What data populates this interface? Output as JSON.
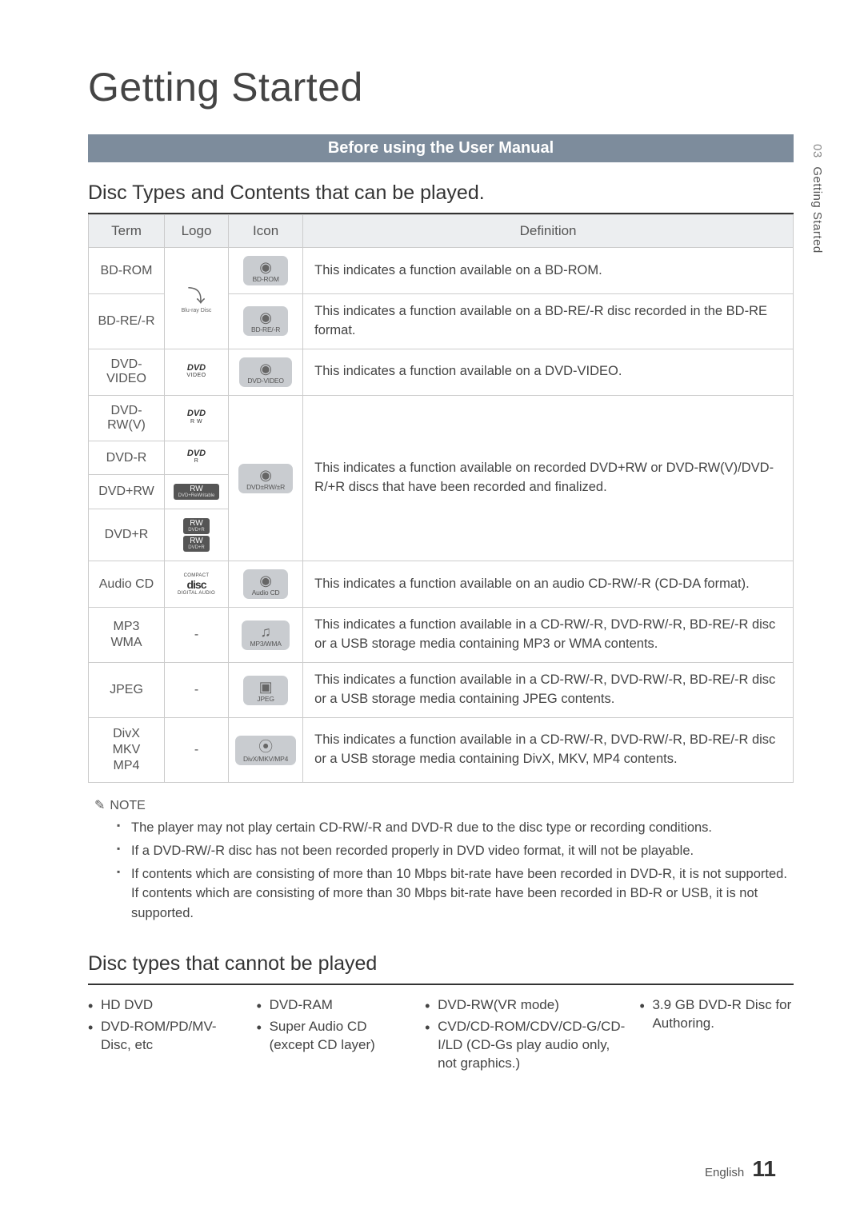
{
  "sideTab": {
    "number": "03",
    "label": "Getting Started"
  },
  "title": "Getting Started",
  "banner": "Before using the User Manual",
  "subtitle1": "Disc Types and Contents that can be played.",
  "tableHeaders": {
    "term": "Term",
    "logo": "Logo",
    "icon": "Icon",
    "definition": "Definition"
  },
  "rows": {
    "bdrom": {
      "term": "BD-ROM",
      "iconLabel": "BD-ROM",
      "def": "This indicates a function available on a BD-ROM."
    },
    "bdre": {
      "term": "BD-RE/-R",
      "iconLabel": "BD-RE/-R",
      "def": "This indicates a function available on a BD-RE/-R disc recorded in the BD-RE format."
    },
    "dvdvid": {
      "term": "DVD-VIDEO",
      "iconLabel": "DVD-VIDEO",
      "def": "This indicates a function available on a DVD-VIDEO."
    },
    "dvdrwv": {
      "term": "DVD-RW(V)"
    },
    "dvdr": {
      "term": "DVD-R"
    },
    "dvdprw": {
      "term": "DVD+RW",
      "iconLabel": "DVD±RW/±R",
      "def": "This indicates a function available on recorded DVD+RW or DVD-RW(V)/DVD-R/+R discs that have been recorded and finalized."
    },
    "dvdpr": {
      "term": "DVD+R"
    },
    "audiocd": {
      "term": "Audio CD",
      "iconLabel": "Audio CD",
      "def": "This indicates a function available on an audio CD-RW/-R (CD-DA format)."
    },
    "mp3": {
      "term": "MP3\nWMA",
      "logoDash": "-",
      "iconLabel": "MP3/WMA",
      "def": "This indicates a function available in a CD-RW/-R, DVD-RW/-R, BD-RE/-R  disc or a USB storage media containing MP3 or WMA contents."
    },
    "jpeg": {
      "term": "JPEG",
      "logoDash": "-",
      "iconLabel": "JPEG",
      "def": "This indicates a function available in a CD-RW/-R, DVD-RW/-R, BD-RE/-R disc or a USB storage media containing JPEG contents."
    },
    "divx": {
      "term": "DivX\nMKV\nMP4",
      "logoDash": "-",
      "iconLabel": "DivX/MKV/MP4",
      "def": "This indicates a function available in a CD-RW/-R, DVD-RW/-R, BD-RE/-R disc or a USB storage media containing DivX, MKV, MP4 contents."
    }
  },
  "logos": {
    "bluray": {
      "main": "⤵",
      "sub": "Blu-ray Disc"
    },
    "dvdVideo": {
      "main": "DVD",
      "sub": "VIDEO"
    },
    "dvdRw": {
      "main": "DVD",
      "sub": "R W"
    },
    "dvdR": {
      "main": "DVD",
      "sub": "R"
    },
    "rwBadge": {
      "main": "RW",
      "sub": "DVD+ReWritable"
    },
    "rwBadgeR": {
      "main": "RW",
      "sub": "DVD+R"
    },
    "cd": {
      "main": "disc",
      "sup": "COMPACT",
      "sub": "DIGITAL AUDIO"
    }
  },
  "iconGlyphs": {
    "disc": "◉",
    "note": "♫",
    "photo": "▣",
    "film": "⦿"
  },
  "noteHead": "NOTE",
  "notes": [
    "The player may not play certain CD-RW/-R and DVD-R due to the disc type or recording conditions.",
    "If a DVD-RW/-R disc has not been recorded properly in DVD video format, it will not be playable.",
    "If contents which are consisting of more than 10 Mbps bit-rate have been recorded in DVD-R, it is not supported.\nIf contents which are consisting of more than 30 Mbps bit-rate have been recorded in BD-R or USB, it is not supported."
  ],
  "subtitle2": "Disc types that cannot be played",
  "cannot": {
    "c1": [
      "HD DVD",
      "DVD-ROM/PD/MV-Disc, etc"
    ],
    "c2": [
      "DVD-RAM",
      "Super Audio CD (except CD layer)"
    ],
    "c3": [
      "DVD-RW(VR mode)",
      "CVD/CD-ROM/CDV/CD-G/CD-I/LD (CD-Gs play audio only, not graphics.)"
    ],
    "c4": [
      "3.9 GB DVD-R Disc for Authoring."
    ]
  },
  "footer": {
    "lang": "English",
    "page": "11"
  },
  "colors": {
    "banner": "#7d8c9c",
    "iconBox": "#c9ccd0",
    "headerBg": "#eceef0"
  }
}
